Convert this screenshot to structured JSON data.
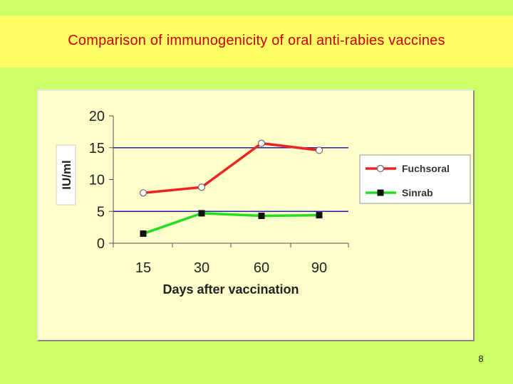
{
  "slide": {
    "title": "Comparison of immunogenicity of oral anti-rabies vaccines",
    "page_number": "8"
  },
  "colors": {
    "background": "#ccff66",
    "title_band": "#ffff66",
    "title_text": "#cc0000",
    "chart_bg": "#ffffcc",
    "gridline": "#2222aa",
    "fuchsoral": "#ee2222",
    "sinrab": "#22dd22"
  },
  "chart_data": {
    "type": "line",
    "title": "",
    "xlabel": "Days after vaccination",
    "ylabel": "IU/ml",
    "categories": [
      "15",
      "30",
      "60",
      "90"
    ],
    "ylim": [
      0,
      20
    ],
    "yticks": [
      0,
      5,
      10,
      15,
      20
    ],
    "grid": "horizontal at 5 and 15",
    "legend_position": "right",
    "series": [
      {
        "name": "Fuchsoral",
        "marker": "open-circle",
        "values": [
          7.9,
          8.8,
          15.7,
          14.6
        ]
      },
      {
        "name": "Sinrab",
        "marker": "filled-square",
        "values": [
          1.5,
          4.7,
          4.3,
          4.4
        ]
      }
    ]
  }
}
